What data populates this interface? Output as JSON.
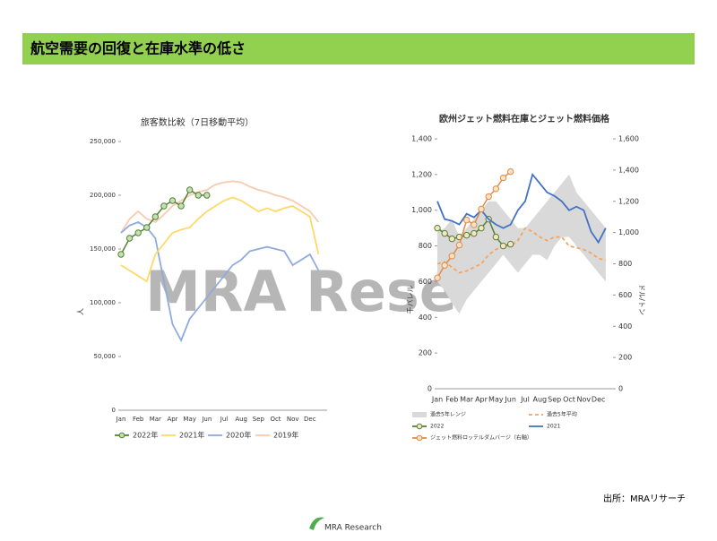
{
  "header": {
    "title": "航空需要の回復と在庫水準の低さ"
  },
  "watermark": "MRA Rese",
  "source": "出所：MRAリサーチ",
  "logo": "MRA Research",
  "chart_data": [
    {
      "type": "line",
      "title": "旅客数比較（7日移動平均）",
      "ylabel": "人",
      "categories": [
        "Jan",
        null,
        "Feb",
        null,
        "Mar",
        null,
        "Apr",
        null,
        "May",
        null,
        "Jun",
        null,
        "Jul",
        null,
        "Aug",
        null,
        "Sep",
        null,
        "Oct",
        null,
        "Nov",
        null,
        "Dec",
        null
      ],
      "ylim": [
        0,
        250000
      ],
      "yticks": [
        0,
        {
          "value": 50000,
          "label": "50,000"
        },
        {
          "value": 100000,
          "label": "100,000"
        },
        {
          "value": 150000,
          "label": "150,000"
        },
        {
          "value": 200000,
          "label": "200,000"
        },
        {
          "value": 250000,
          "label": "250,000"
        }
      ],
      "series": [
        {
          "name": "2019年",
          "color": "#f8cbad",
          "values": [
            165000,
            178000,
            185000,
            178000,
            175000,
            182000,
            190000,
            195000,
            200000,
            203000,
            205000,
            210000,
            212000,
            213000,
            212000,
            208000,
            205000,
            203000,
            200000,
            198000,
            195000,
            190000,
            185000,
            175000
          ]
        },
        {
          "name": "2020年",
          "color": "#8faadc",
          "values": [
            165000,
            172000,
            175000,
            170000,
            160000,
            120000,
            80000,
            65000,
            85000,
            95000,
            105000,
            115000,
            125000,
            135000,
            140000,
            148000,
            150000,
            152000,
            150000,
            148000,
            135000,
            140000,
            145000,
            130000
          ]
        },
        {
          "name": "2021年",
          "color": "#ffd966",
          "values": [
            135000,
            130000,
            125000,
            120000,
            145000,
            155000,
            165000,
            168000,
            170000,
            178000,
            185000,
            190000,
            195000,
            198000,
            195000,
            190000,
            185000,
            188000,
            185000,
            188000,
            190000,
            185000,
            180000,
            145000
          ]
        },
        {
          "name": "2022年",
          "color": "#548235",
          "marker": true,
          "values": [
            145000,
            160000,
            165000,
            170000,
            180000,
            190000,
            195000,
            190000,
            205000,
            200000,
            200000,
            null,
            null,
            null,
            null,
            null,
            null,
            null,
            null,
            null,
            null,
            null,
            null,
            null
          ]
        }
      ]
    },
    {
      "type": "line",
      "title": "欧州ジェット燃料在庫とジェット燃料価格",
      "ylabel": "千バレル",
      "y2label": "ドル/トン",
      "categories": [
        "Jan",
        null,
        "Feb",
        null,
        "Mar",
        null,
        "Apr",
        null,
        "May",
        null,
        "Jun",
        null,
        "Jul",
        null,
        "Aug",
        null,
        "Sep",
        null,
        "Oct",
        null,
        "Nov",
        null,
        "Dec",
        null
      ],
      "ylim": [
        0,
        1400
      ],
      "yticks": [
        0,
        200,
        400,
        600,
        800,
        {
          "value": 1000,
          "label": "1,000"
        },
        {
          "value": 1200,
          "label": "1,200"
        },
        {
          "value": 1400,
          "label": "1,400"
        }
      ],
      "y2lim": [
        0,
        1600
      ],
      "y2ticks": [
        0,
        200,
        400,
        600,
        800,
        {
          "value": 1000,
          "label": "1,000"
        },
        {
          "value": 1200,
          "label": "1,200"
        },
        {
          "value": 1400,
          "label": "1,400"
        },
        {
          "value": 1600,
          "label": "1,600"
        }
      ],
      "series": [
        {
          "name": "過去5年レンジ",
          "color": "#d9d9d9",
          "low": [
            600,
            550,
            480,
            420,
            500,
            550,
            600,
            650,
            700,
            750,
            700,
            650,
            700,
            750,
            750,
            720,
            800,
            850,
            850,
            800,
            750,
            700,
            650,
            600
          ],
          "high": [
            880,
            900,
            950,
            850,
            900,
            950,
            1000,
            1050,
            1050,
            1000,
            950,
            900,
            900,
            950,
            1000,
            1050,
            1100,
            1150,
            1200,
            1100,
            1050,
            1000,
            950,
            900
          ]
        },
        {
          "name": "過去5年平均",
          "color": "#f4a460",
          "dash": true,
          "values": [
            700,
            710,
            680,
            650,
            660,
            680,
            700,
            750,
            780,
            800,
            800,
            830,
            900,
            880,
            850,
            830,
            850,
            850,
            800,
            790,
            780,
            760,
            730,
            720
          ]
        },
        {
          "name": "2022",
          "color": "#548235",
          "marker": true,
          "values": [
            900,
            870,
            840,
            850,
            860,
            870,
            900,
            950,
            850,
            800,
            810,
            null,
            null,
            null,
            null,
            null,
            null,
            null,
            null,
            null,
            null,
            null,
            null,
            null
          ]
        },
        {
          "name": "2021",
          "color": "#4472c4",
          "values": [
            1050,
            950,
            940,
            920,
            980,
            960,
            1000,
            950,
            920,
            900,
            920,
            1000,
            1050,
            1200,
            1150,
            1100,
            1080,
            1050,
            1000,
            1020,
            1000,
            880,
            820,
            900
          ]
        },
        {
          "name": "ジェット燃料ロッテルダムバージ（右軸）",
          "color": "#e08a4a",
          "marker": true,
          "axis": "y2",
          "values": [
            710,
            790,
            850,
            920,
            1080,
            1050,
            1150,
            1230,
            1280,
            1350,
            1390,
            null,
            null,
            null,
            null,
            null,
            null,
            null,
            null,
            null,
            null,
            null,
            null,
            null
          ]
        }
      ]
    }
  ]
}
